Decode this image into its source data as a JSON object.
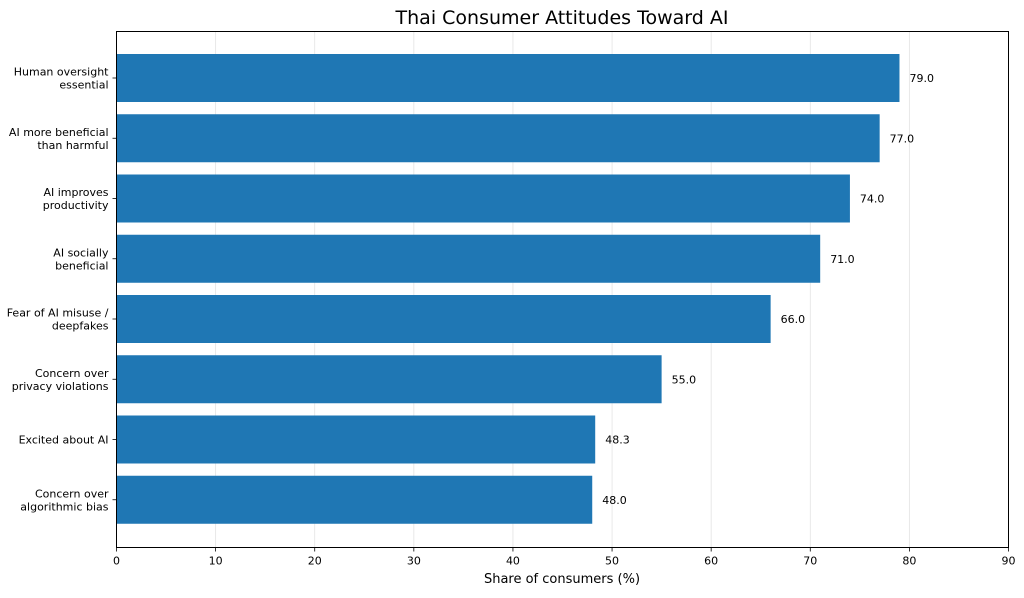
{
  "chart_data": {
    "type": "bar",
    "orientation": "horizontal",
    "title": "Thai Consumer Attitudes Toward AI",
    "xlabel": "Share of consumers (%)",
    "ylabel": "",
    "xlim": [
      0,
      90
    ],
    "xticks": [
      "0",
      "10",
      "20",
      "30",
      "40",
      "50",
      "60",
      "70",
      "80",
      "90"
    ],
    "grid": "vertical",
    "bar_color": "#1f77b4",
    "categories": [
      [
        "Human oversight",
        "essential"
      ],
      [
        "AI more beneficial",
        "than harmful"
      ],
      [
        "AI improves",
        "productivity"
      ],
      [
        "AI socially",
        "beneficial"
      ],
      [
        "Fear of AI misuse /",
        "deepfakes"
      ],
      [
        "Concern over",
        "privacy violations"
      ],
      [
        "Excited about AI"
      ],
      [
        "Concern over",
        "algorithmic bias"
      ]
    ],
    "values": [
      79.0,
      77.0,
      74.0,
      71.0,
      66.0,
      55.0,
      48.3,
      48.0
    ],
    "data_labels": [
      "79.0",
      "77.0",
      "74.0",
      "71.0",
      "66.0",
      "55.0",
      "48.3",
      "48.0"
    ]
  }
}
